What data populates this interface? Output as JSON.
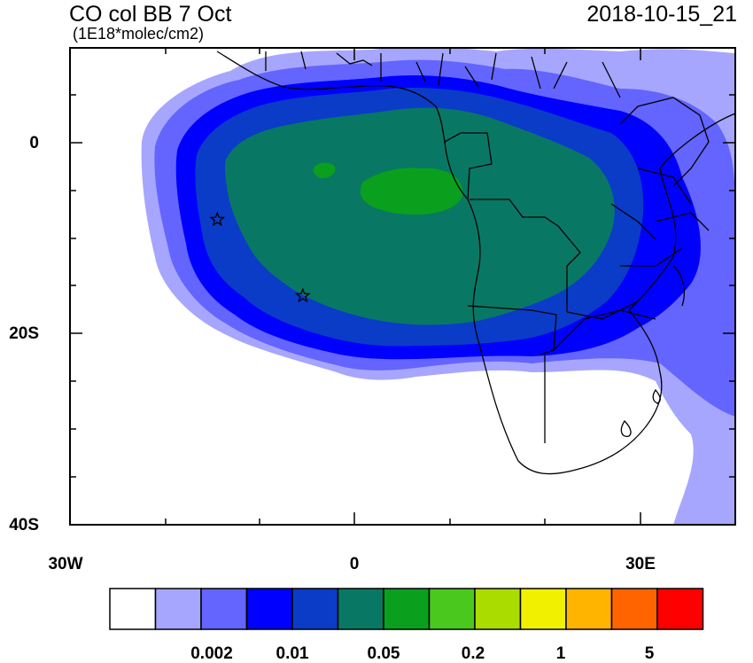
{
  "title": "CO col BB 7 Oct",
  "units": "(1E18*molec/cm2)",
  "timestamp": "2018-10-15_21",
  "axes": {
    "lat_labels": [
      "0",
      "20S",
      "40S"
    ],
    "lon_labels": [
      "30W",
      "0",
      "30E"
    ]
  },
  "colorbar": {
    "colors": [
      "#ffffff",
      "#a6a6ff",
      "#6464ff",
      "#0000ff",
      "#0a3cc8",
      "#087864",
      "#0aa01e",
      "#4bc81e",
      "#aadc00",
      "#f0f000",
      "#ffb400",
      "#ff6400",
      "#ff0000"
    ],
    "tick_labels": [
      "0.002",
      "0.01",
      "0.05",
      "0.2",
      "1",
      "5"
    ]
  },
  "markers": [
    {
      "name": "star-1",
      "lon": -14.5,
      "lat": -8
    },
    {
      "name": "star-2",
      "lon": -5.5,
      "lat": -16
    }
  ]
}
